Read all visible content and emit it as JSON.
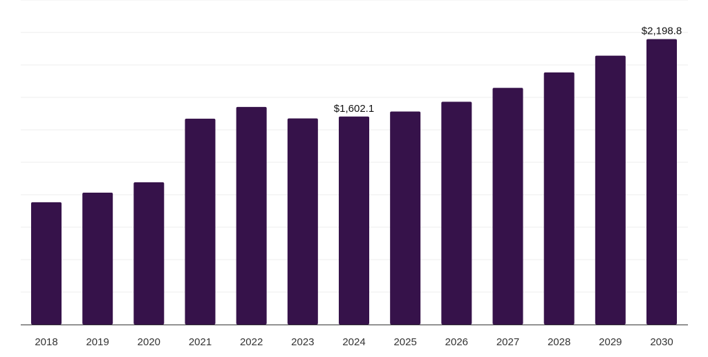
{
  "chart_data": {
    "type": "bar",
    "categories": [
      "2018",
      "2019",
      "2020",
      "2021",
      "2022",
      "2023",
      "2024",
      "2025",
      "2026",
      "2027",
      "2028",
      "2029",
      "2030"
    ],
    "series": [
      {
        "values": [
          942,
          1016,
          1096,
          1586,
          1676,
          1588,
          1602.1,
          1641,
          1716,
          1823,
          1942,
          2071,
          2198.8
        ]
      }
    ],
    "data_labels": [
      {
        "category": "2024",
        "text": "$1,602.1"
      },
      {
        "category": "2030",
        "text": "$2,198.8"
      }
    ],
    "ylim": [
      0,
      2500
    ],
    "y_gridline_step": 250,
    "grid": true,
    "legend": "none",
    "bar_color": "#36124a",
    "grid_color": "#eeeeee",
    "axis_color": "#333333"
  }
}
